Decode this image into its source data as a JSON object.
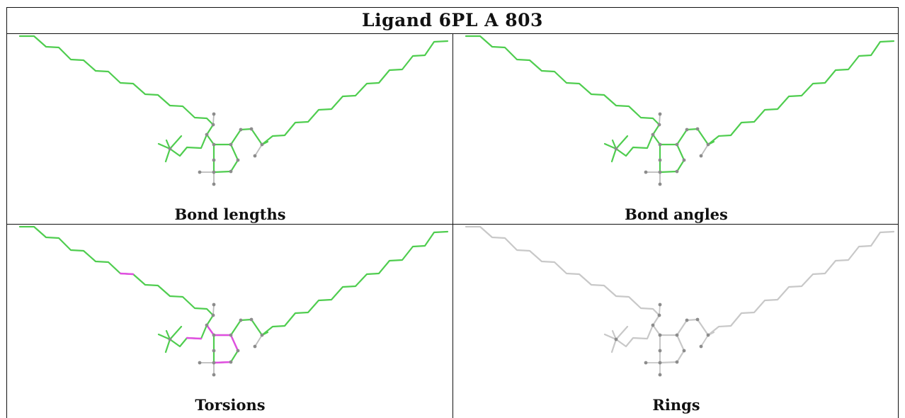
{
  "title": "Ligand 6PL A 803",
  "colors": {
    "ok": "#4fcd4f",
    "outlier": "#e24de2",
    "neutral": "#c8c8c8",
    "atom": "#8c8c8c",
    "hydrogen": "#bcbcbc"
  },
  "panels": [
    {
      "caption": "Bond lengths",
      "mode": "bonds"
    },
    {
      "caption": "Bond angles",
      "mode": "angles"
    },
    {
      "caption": "Torsions",
      "mode": "torsions"
    },
    {
      "caption": "Rings",
      "mode": "rings"
    }
  ]
}
